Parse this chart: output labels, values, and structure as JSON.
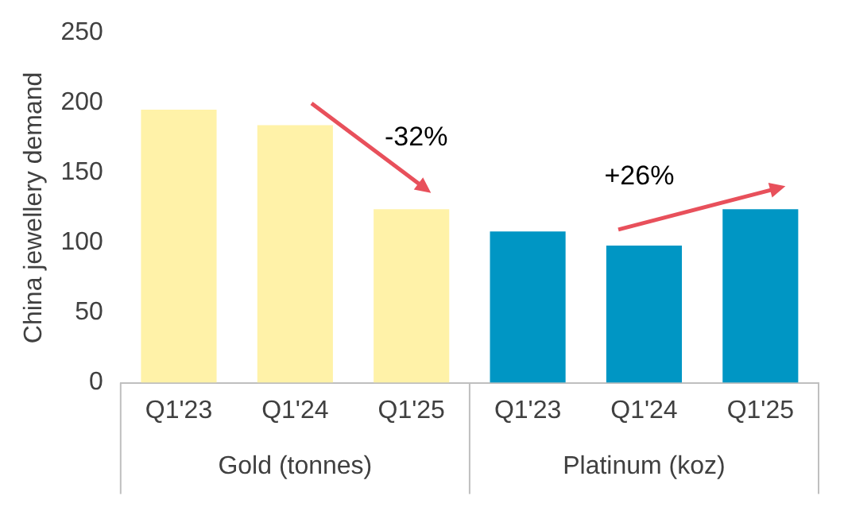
{
  "chart_data": {
    "type": "bar",
    "ylabel": "China jewellery demand",
    "categories": [
      "Q1'23",
      "Q1'24",
      "Q1'25",
      "Q1'23",
      "Q1'24",
      "Q1'25"
    ],
    "values": [
      195,
      184,
      124,
      108,
      98,
      124
    ],
    "colors": [
      "#fff2a8",
      "#fff2a8",
      "#fff2a8",
      "#0096c4",
      "#0096c4",
      "#0096c4"
    ],
    "ylim": [
      0,
      250
    ],
    "yticks": [
      0,
      50,
      100,
      150,
      200,
      250
    ],
    "grid": false,
    "legend": false,
    "annotations": [
      "-32%",
      "+26%",
      "Gold (tonnes)",
      "Platinum (koz)"
    ]
  }
}
